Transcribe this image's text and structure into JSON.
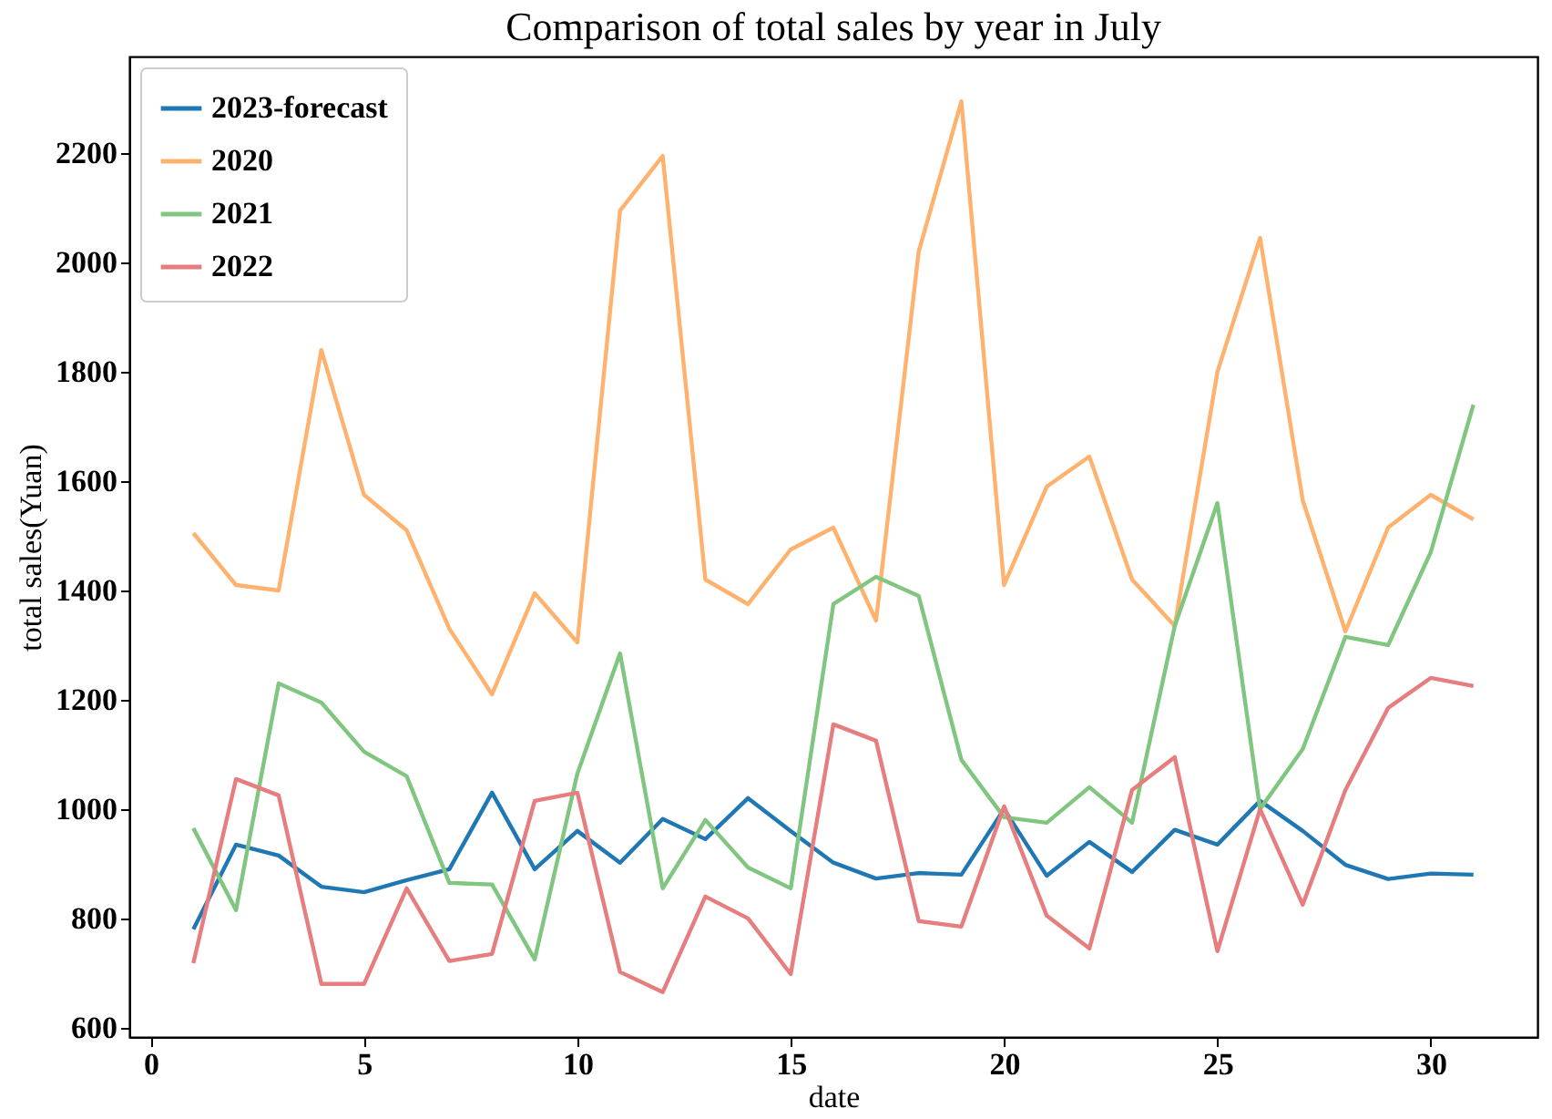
{
  "chart_data": {
    "type": "line",
    "title": "Comparison of total sales by year in July",
    "xlabel": "date",
    "ylabel": "total sales(Yuan)",
    "x": [
      1,
      2,
      3,
      4,
      5,
      6,
      7,
      8,
      9,
      10,
      11,
      12,
      13,
      14,
      15,
      16,
      17,
      18,
      19,
      20,
      21,
      22,
      23,
      24,
      25,
      26,
      27,
      28,
      29,
      30,
      31
    ],
    "series": [
      {
        "name": "2023-forecast",
        "color": "#1f77b4",
        "values": [
          780,
          935,
          915,
          858,
          848,
          870,
          890,
          1030,
          890,
          960,
          902,
          982,
          945,
          1020,
          960,
          902,
          873,
          883,
          880,
          1000,
          878,
          940,
          885,
          962,
          935,
          1015,
          960,
          898,
          872,
          882,
          880
        ]
      },
      {
        "name": "2020",
        "color": "#ffb26e",
        "values": [
          1505,
          1410,
          1400,
          1840,
          1575,
          1510,
          1330,
          1210,
          1395,
          1305,
          2095,
          2195,
          1420,
          1375,
          1475,
          1515,
          1345,
          2020,
          2295,
          1410,
          1590,
          1645,
          1420,
          1335,
          1800,
          2045,
          1565,
          1325,
          1515,
          1575,
          1530
        ]
      },
      {
        "name": "2021",
        "color": "#80c680",
        "values": [
          965,
          815,
          1230,
          1195,
          1105,
          1060,
          865,
          862,
          725,
          1065,
          1285,
          855,
          980,
          893,
          855,
          1375,
          1425,
          1390,
          1090,
          985,
          975,
          1040,
          975,
          1335,
          1560,
          1000,
          1110,
          1315,
          1300,
          1470,
          1740
        ]
      },
      {
        "name": "2022",
        "color": "#e67d7e",
        "values": [
          718,
          1055,
          1025,
          680,
          680,
          855,
          722,
          735,
          1015,
          1030,
          702,
          665,
          840,
          800,
          698,
          1155,
          1125,
          795,
          785,
          1005,
          805,
          745,
          1035,
          1095,
          740,
          1000,
          825,
          1035,
          1185,
          1240,
          1225
        ]
      }
    ],
    "xlim": [
      -0.5,
      32.5
    ],
    "xticks": [
      0,
      5,
      10,
      15,
      20,
      25,
      30
    ],
    "ylim": [
      583,
      2377
    ],
    "yticks": [
      600,
      800,
      1000,
      1200,
      1400,
      1600,
      1800,
      2000,
      2200
    ],
    "grid": false,
    "legend": "top left",
    "marker": "none",
    "line_style": "solid"
  }
}
